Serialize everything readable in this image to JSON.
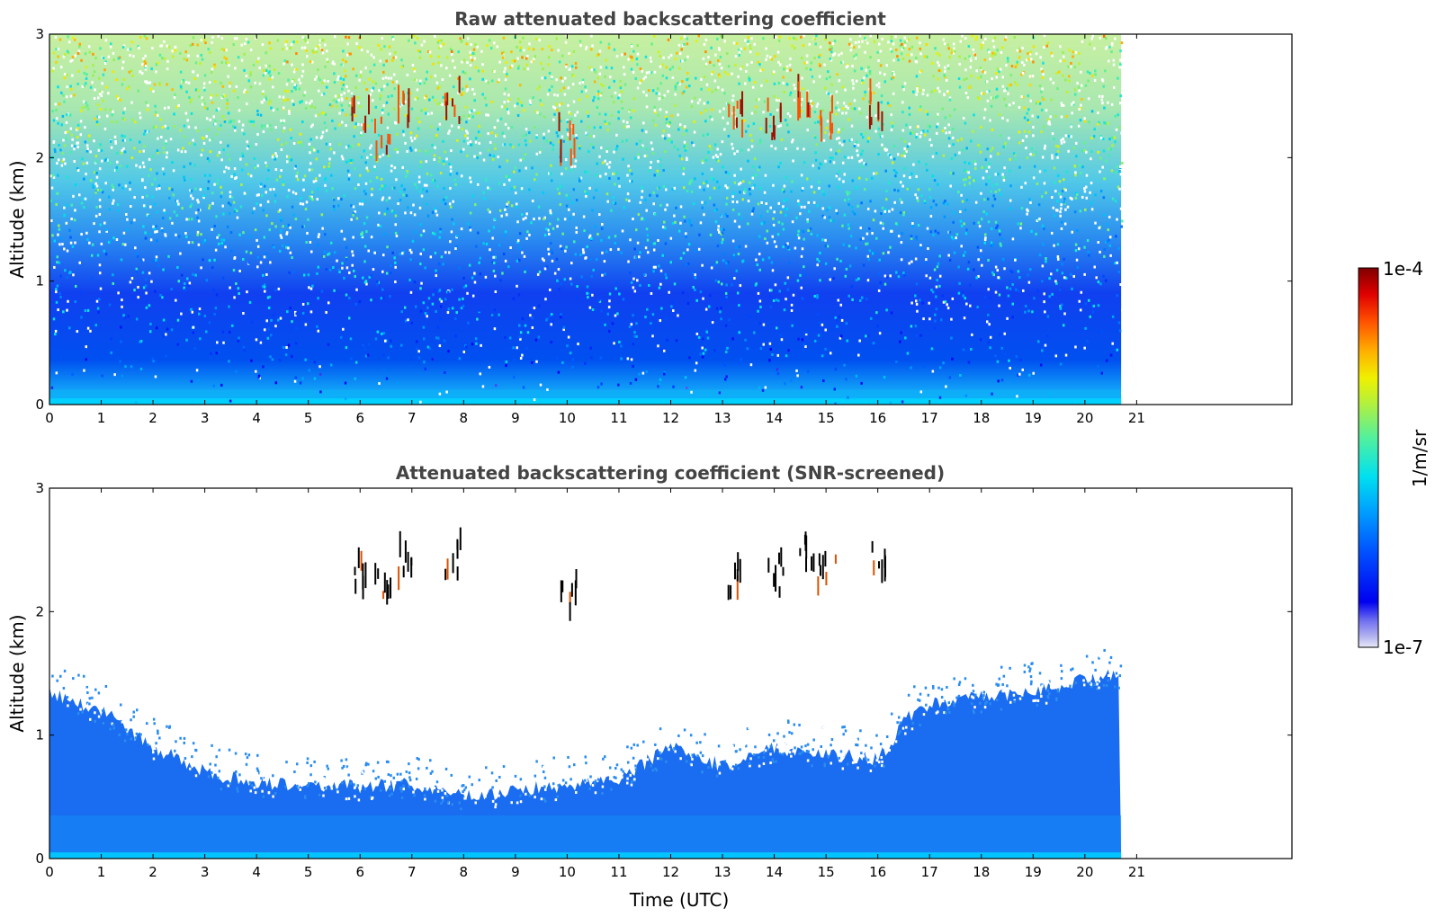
{
  "chart_data": [
    {
      "type": "heatmap",
      "title": "Raw attenuated backscattering coefficient",
      "xlabel": "",
      "ylabel": "Altitude (km)",
      "xlim": [
        0,
        24
      ],
      "ylim": [
        0,
        3
      ],
      "x_ticks": [
        "0",
        "1",
        "2",
        "3",
        "4",
        "5",
        "6",
        "7",
        "8",
        "9",
        "10",
        "11",
        "12",
        "13",
        "14",
        "15",
        "16",
        "17",
        "18",
        "19",
        "20",
        "21"
      ],
      "y_ticks": [
        "0",
        "1",
        "2",
        "3"
      ],
      "data_extent_hours": [
        0,
        20.7
      ],
      "grid": false,
      "screened": false,
      "colorscale": "jet (log)",
      "features": [
        {
          "kind": "near-surface layer",
          "time_range": [
            0,
            20.7
          ],
          "altitude_range": [
            0,
            0.1
          ],
          "level": "mid"
        },
        {
          "kind": "boundary layer aerosol",
          "time_range": [
            0,
            20.7
          ],
          "altitude_range": [
            0,
            0.8
          ],
          "level": "low"
        },
        {
          "kind": "cloud",
          "time": 6.0,
          "altitude": 2.3
        },
        {
          "kind": "cloud",
          "time": 6.4,
          "altitude": 2.2
        },
        {
          "kind": "cloud",
          "time": 6.8,
          "altitude": 2.4
        },
        {
          "kind": "cloud",
          "time": 7.8,
          "altitude": 2.45
        },
        {
          "kind": "cloud",
          "time": 10.0,
          "altitude": 2.15
        },
        {
          "kind": "cloud",
          "time": 13.2,
          "altitude": 2.3
        },
        {
          "kind": "cloud",
          "time": 14.0,
          "altitude": 2.3
        },
        {
          "kind": "cloud",
          "time": 14.6,
          "altitude": 2.5
        },
        {
          "kind": "cloud",
          "time": 15.0,
          "altitude": 2.3
        },
        {
          "kind": "cloud",
          "time": 16.0,
          "altitude": 2.4
        }
      ]
    },
    {
      "type": "heatmap",
      "title": "Attenuated backscattering coefficient (SNR-screened)",
      "xlabel": "Time (UTC)",
      "ylabel": "Altitude (km)",
      "xlim": [
        0,
        24
      ],
      "ylim": [
        0,
        3
      ],
      "x_ticks": [
        "0",
        "1",
        "2",
        "3",
        "4",
        "5",
        "6",
        "7",
        "8",
        "9",
        "10",
        "11",
        "12",
        "13",
        "14",
        "15",
        "16",
        "17",
        "18",
        "19",
        "20",
        "21"
      ],
      "y_ticks": [
        "0",
        "1",
        "2",
        "3"
      ],
      "data_extent_hours": [
        0,
        20.7
      ],
      "grid": false,
      "screened": true,
      "colorscale": "jet (log)",
      "boundary_layer_top_km": [
        [
          0,
          1.35
        ],
        [
          1,
          1.2
        ],
        [
          2,
          0.9
        ],
        [
          3,
          0.7
        ],
        [
          4,
          0.62
        ],
        [
          5,
          0.6
        ],
        [
          6,
          0.58
        ],
        [
          7,
          0.6
        ],
        [
          8,
          0.5
        ],
        [
          9,
          0.55
        ],
        [
          10,
          0.6
        ],
        [
          11,
          0.65
        ],
        [
          12,
          0.9
        ],
        [
          13,
          0.75
        ],
        [
          14,
          0.9
        ],
        [
          15,
          0.85
        ],
        [
          16,
          0.8
        ],
        [
          16.6,
          1.15
        ],
        [
          17,
          1.25
        ],
        [
          18,
          1.3
        ],
        [
          19,
          1.35
        ],
        [
          20,
          1.45
        ],
        [
          20.7,
          1.5
        ]
      ],
      "features": [
        {
          "kind": "cloud",
          "time": 6.0,
          "altitude": 2.3
        },
        {
          "kind": "cloud",
          "time": 6.4,
          "altitude": 2.2
        },
        {
          "kind": "cloud",
          "time": 6.8,
          "altitude": 2.4
        },
        {
          "kind": "cloud",
          "time": 7.8,
          "altitude": 2.45
        },
        {
          "kind": "cloud",
          "time": 10.0,
          "altitude": 2.15
        },
        {
          "kind": "cloud",
          "time": 13.2,
          "altitude": 2.3
        },
        {
          "kind": "cloud",
          "time": 14.0,
          "altitude": 2.3
        },
        {
          "kind": "cloud",
          "time": 14.6,
          "altitude": 2.5
        },
        {
          "kind": "cloud",
          "time": 15.0,
          "altitude": 2.3
        },
        {
          "kind": "cloud",
          "time": 16.0,
          "altitude": 2.4
        }
      ]
    }
  ],
  "colorbar": {
    "max_label": "1e-4",
    "min_label": "1e-7",
    "unit_label": "1/m/sr",
    "scale": "log",
    "range": [
      1e-07,
      0.0001
    ],
    "colors": [
      "#e8e8f8",
      "#b0b0f0",
      "#7070f0",
      "#0000f0",
      "#0030ff",
      "#0070ff",
      "#00b0ff",
      "#00e0f0",
      "#40f0b0",
      "#90f060",
      "#e0f020",
      "#ffd000",
      "#ff8000",
      "#ff3000",
      "#d00000",
      "#800000"
    ]
  }
}
